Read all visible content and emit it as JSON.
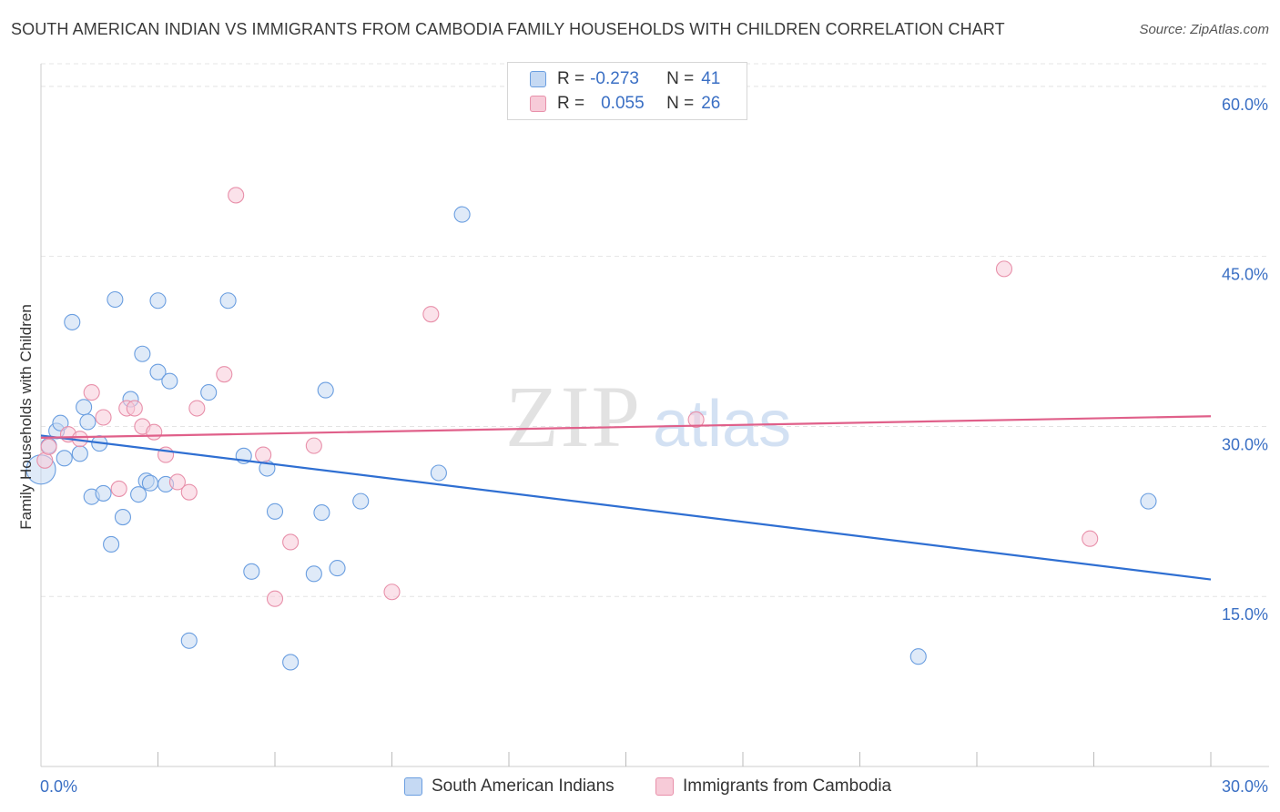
{
  "title": "SOUTH AMERICAN INDIAN VS IMMIGRANTS FROM CAMBODIA FAMILY HOUSEHOLDS WITH CHILDREN CORRELATION CHART",
  "source": "Source: ZipAtlas.com",
  "watermark": {
    "zip": "ZIP",
    "atlas": "atlas"
  },
  "legend": {
    "r_label": "R =",
    "n_label": "N =",
    "rows": [
      {
        "r": "-0.273",
        "n": "41"
      },
      {
        "r": "0.055",
        "n": "26"
      }
    ]
  },
  "chart_data": {
    "type": "scatter",
    "title": "SOUTH AMERICAN INDIAN VS IMMIGRANTS FROM CAMBODIA FAMILY HOUSEHOLDS WITH CHILDREN CORRELATION CHART",
    "xlabel": "",
    "ylabel": "Family Households with Children",
    "xlim": [
      0,
      30
    ],
    "ylim": [
      0,
      62
    ],
    "x_tick_labels": [
      "0.0%",
      "30.0%"
    ],
    "y_ticks": [
      15,
      30,
      45,
      60
    ],
    "y_tick_labels": [
      "15.0%",
      "30.0%",
      "45.0%",
      "60.0%"
    ],
    "grid": true,
    "series": [
      {
        "name": "South American Indians",
        "color": "#6a9ee0",
        "fill": "#c5d9f3",
        "trend": {
          "x": [
            0,
            30
          ],
          "y": [
            29.2,
            16.5
          ],
          "color": "#2f6fd2"
        },
        "points": [
          {
            "x": 0.0,
            "y": 26.2,
            "big": true
          },
          {
            "x": 0.2,
            "y": 28.3
          },
          {
            "x": 0.4,
            "y": 29.6
          },
          {
            "x": 0.5,
            "y": 30.3
          },
          {
            "x": 0.6,
            "y": 27.2
          },
          {
            "x": 0.8,
            "y": 39.2
          },
          {
            "x": 1.0,
            "y": 27.6
          },
          {
            "x": 1.1,
            "y": 31.7
          },
          {
            "x": 1.2,
            "y": 30.4
          },
          {
            "x": 1.3,
            "y": 23.8
          },
          {
            "x": 1.5,
            "y": 28.5
          },
          {
            "x": 1.6,
            "y": 24.1
          },
          {
            "x": 1.8,
            "y": 19.6
          },
          {
            "x": 1.9,
            "y": 41.2
          },
          {
            "x": 2.1,
            "y": 22.0
          },
          {
            "x": 2.3,
            "y": 32.4
          },
          {
            "x": 2.5,
            "y": 24.0
          },
          {
            "x": 2.6,
            "y": 36.4
          },
          {
            "x": 2.7,
            "y": 25.2
          },
          {
            "x": 2.8,
            "y": 25.0
          },
          {
            "x": 3.0,
            "y": 41.1
          },
          {
            "x": 3.0,
            "y": 34.8
          },
          {
            "x": 3.2,
            "y": 24.9
          },
          {
            "x": 3.3,
            "y": 34.0
          },
          {
            "x": 3.8,
            "y": 11.1
          },
          {
            "x": 4.3,
            "y": 33.0
          },
          {
            "x": 4.8,
            "y": 41.1
          },
          {
            "x": 5.2,
            "y": 27.4
          },
          {
            "x": 5.4,
            "y": 17.2
          },
          {
            "x": 5.8,
            "y": 26.3
          },
          {
            "x": 6.0,
            "y": 22.5
          },
          {
            "x": 6.4,
            "y": 9.2
          },
          {
            "x": 7.0,
            "y": 17.0
          },
          {
            "x": 7.2,
            "y": 22.4
          },
          {
            "x": 7.3,
            "y": 33.2
          },
          {
            "x": 7.6,
            "y": 17.5
          },
          {
            "x": 8.2,
            "y": 23.4
          },
          {
            "x": 10.2,
            "y": 25.9
          },
          {
            "x": 10.8,
            "y": 48.7
          },
          {
            "x": 22.5,
            "y": 9.7
          },
          {
            "x": 28.4,
            "y": 23.4
          }
        ]
      },
      {
        "name": "Immigrants from Cambodia",
        "color": "#e890aa",
        "fill": "#f7cbd8",
        "trend": {
          "x": [
            0,
            30
          ],
          "y": [
            29.0,
            30.9
          ],
          "color": "#e0608a"
        },
        "points": [
          {
            "x": 0.1,
            "y": 27.0
          },
          {
            "x": 0.2,
            "y": 28.2
          },
          {
            "x": 0.7,
            "y": 29.3
          },
          {
            "x": 1.0,
            "y": 28.9
          },
          {
            "x": 1.3,
            "y": 33.0
          },
          {
            "x": 1.6,
            "y": 30.8
          },
          {
            "x": 2.0,
            "y": 24.5
          },
          {
            "x": 2.2,
            "y": 31.6
          },
          {
            "x": 2.4,
            "y": 31.6
          },
          {
            "x": 2.6,
            "y": 30.0
          },
          {
            "x": 2.9,
            "y": 29.5
          },
          {
            "x": 3.2,
            "y": 27.5
          },
          {
            "x": 3.5,
            "y": 25.1
          },
          {
            "x": 3.8,
            "y": 24.2
          },
          {
            "x": 4.0,
            "y": 31.6
          },
          {
            "x": 4.7,
            "y": 34.6
          },
          {
            "x": 5.0,
            "y": 50.4
          },
          {
            "x": 5.7,
            "y": 27.5
          },
          {
            "x": 6.0,
            "y": 14.8
          },
          {
            "x": 6.4,
            "y": 19.8
          },
          {
            "x": 7.0,
            "y": 28.3
          },
          {
            "x": 9.0,
            "y": 15.4
          },
          {
            "x": 10.0,
            "y": 39.9
          },
          {
            "x": 16.8,
            "y": 30.6
          },
          {
            "x": 24.7,
            "y": 43.9
          },
          {
            "x": 26.9,
            "y": 20.1
          }
        ]
      }
    ]
  }
}
